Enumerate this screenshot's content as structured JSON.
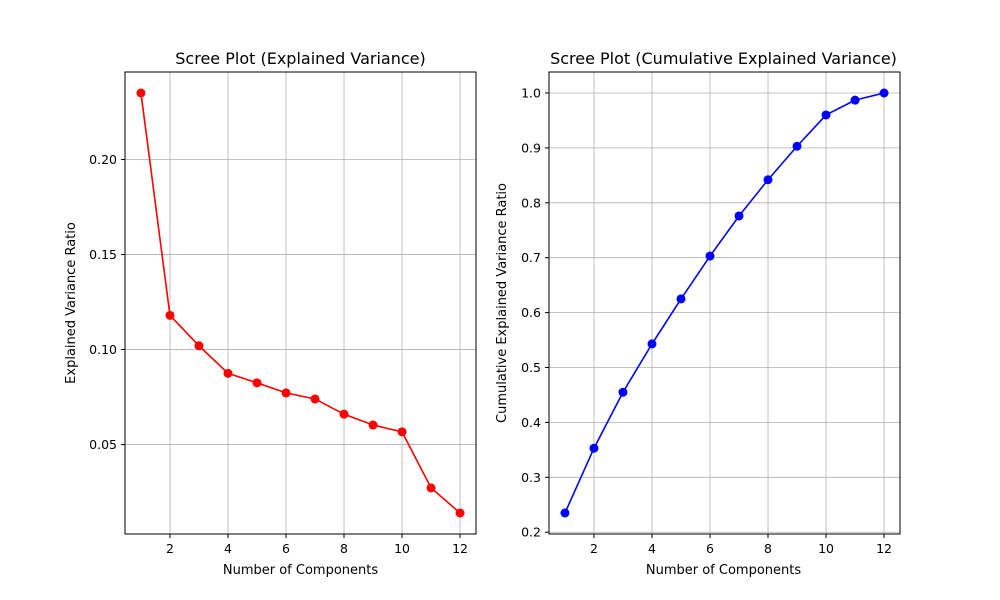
{
  "chart_data": [
    {
      "type": "line",
      "title": "Scree Plot (Explained Variance)",
      "xlabel": "Number of Components",
      "ylabel": "Explained Variance Ratio",
      "x": [
        1,
        2,
        3,
        4,
        5,
        6,
        7,
        8,
        9,
        10,
        11,
        12
      ],
      "series": [
        {
          "name": "Explained Variance Ratio",
          "color": "#ff0000",
          "values": [
            0.235,
            0.118,
            0.102,
            0.0875,
            0.0825,
            0.0772,
            0.074,
            0.066,
            0.0603,
            0.0567,
            0.0272,
            0.014
          ]
        }
      ],
      "xlim": [
        0.45,
        12.55
      ],
      "ylim": [
        0.00295,
        0.24605
      ],
      "xticks": [
        2,
        4,
        6,
        8,
        10,
        12
      ],
      "xtick_labels": [
        "2",
        "4",
        "6",
        "8",
        "10",
        "12"
      ],
      "yticks": [
        0.05,
        0.1,
        0.15,
        0.2
      ],
      "ytick_labels": [
        "0.05",
        "0.10",
        "0.15",
        "0.20"
      ],
      "grid": true
    },
    {
      "type": "line",
      "title": "Scree Plot (Cumulative Explained Variance)",
      "xlabel": "Number of Components",
      "ylabel": "Cumulative Explained Variance Ratio",
      "x": [
        1,
        2,
        3,
        4,
        5,
        6,
        7,
        8,
        9,
        10,
        11,
        12
      ],
      "series": [
        {
          "name": "Cumulative Explained Variance Ratio",
          "color": "#0000ff",
          "values": [
            0.235,
            0.353,
            0.455,
            0.543,
            0.625,
            0.703,
            0.776,
            0.842,
            0.903,
            0.96,
            0.987,
            1.0
          ]
        }
      ],
      "xlim": [
        0.45,
        12.55
      ],
      "ylim": [
        0.19675,
        1.03825
      ],
      "xticks": [
        2,
        4,
        6,
        8,
        10,
        12
      ],
      "xtick_labels": [
        "2",
        "4",
        "6",
        "8",
        "10",
        "12"
      ],
      "yticks": [
        0.2,
        0.3,
        0.4,
        0.5,
        0.6,
        0.7,
        0.8,
        0.9,
        1.0
      ],
      "ytick_labels": [
        "0.2",
        "0.3",
        "0.4",
        "0.5",
        "0.6",
        "0.7",
        "0.8",
        "0.9",
        "1.0"
      ],
      "grid": true
    }
  ]
}
